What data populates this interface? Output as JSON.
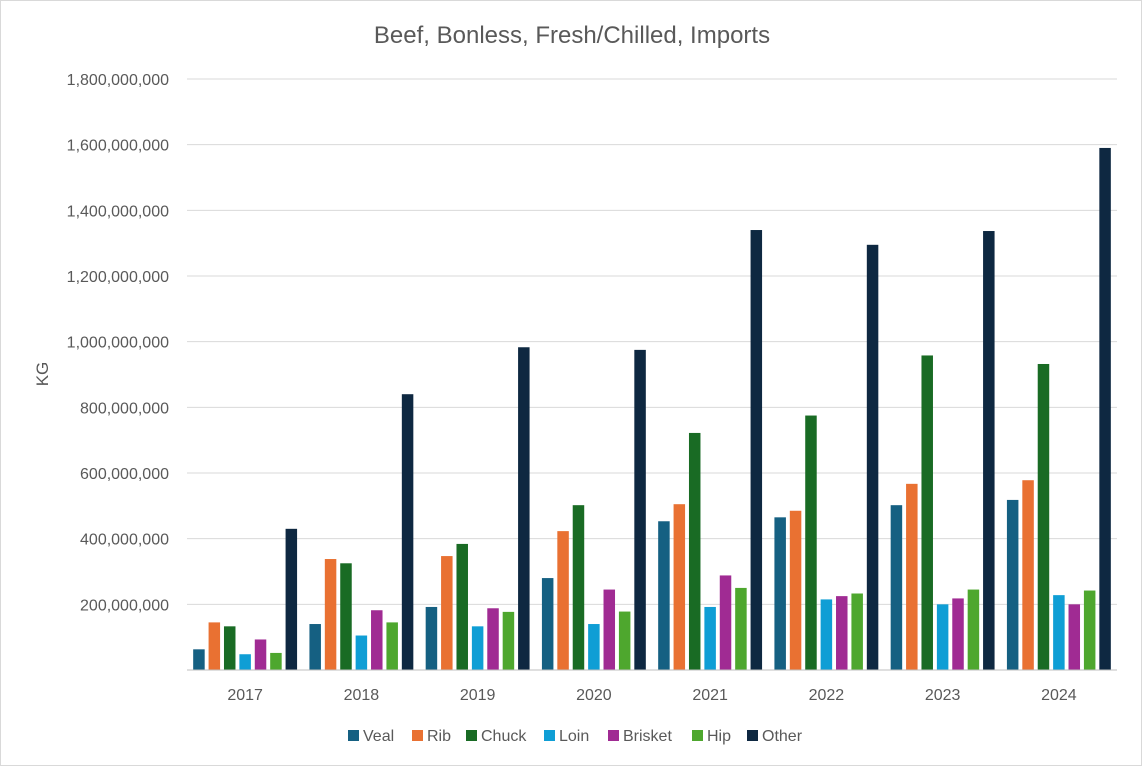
{
  "chart_data": {
    "type": "bar",
    "title": "Beef, Bonless, Fresh/Chilled, Imports",
    "xlabel": "",
    "ylabel": "KG",
    "ylim": [
      0,
      1800000000
    ],
    "yticks": [
      {
        "value": 200000000,
        "label": "200,000,000"
      },
      {
        "value": 400000000,
        "label": "400,000,000"
      },
      {
        "value": 600000000,
        "label": "600,000,000"
      },
      {
        "value": 800000000,
        "label": "800,000,000"
      },
      {
        "value": 1000000000,
        "label": "1,000,000,000"
      },
      {
        "value": 1200000000,
        "label": "1,200,000,000"
      },
      {
        "value": 1400000000,
        "label": "1,400,000,000"
      },
      {
        "value": 1600000000,
        "label": "1,600,000,000"
      },
      {
        "value": 1800000000,
        "label": "1,800,000,000"
      }
    ],
    "grid": true,
    "legend_position": "bottom",
    "categories": [
      "2017",
      "2018",
      "2019",
      "2020",
      "2021",
      "2022",
      "2023",
      "2024"
    ],
    "series": [
      {
        "name": "Veal",
        "color": "#156082",
        "values": [
          63000000,
          140000000,
          192000000,
          280000000,
          453000000,
          465000000,
          502000000,
          518000000
        ]
      },
      {
        "name": "Rib",
        "color": "#e97132",
        "values": [
          145000000,
          338000000,
          347000000,
          423000000,
          505000000,
          485000000,
          567000000,
          578000000
        ]
      },
      {
        "name": "Chuck",
        "color": "#196b24",
        "values": [
          133000000,
          325000000,
          384000000,
          502000000,
          722000000,
          775000000,
          958000000,
          932000000
        ]
      },
      {
        "name": "Loin",
        "color": "#0f9ed5",
        "values": [
          48000000,
          105000000,
          133000000,
          140000000,
          192000000,
          215000000,
          200000000,
          228000000
        ]
      },
      {
        "name": "Brisket",
        "color": "#a02b93",
        "values": [
          93000000,
          182000000,
          188000000,
          245000000,
          288000000,
          225000000,
          218000000,
          200000000
        ]
      },
      {
        "name": "Hip",
        "color": "#4ea72e",
        "values": [
          52000000,
          145000000,
          177000000,
          178000000,
          250000000,
          233000000,
          245000000,
          242000000
        ]
      },
      {
        "name": "Other",
        "color": "#0e2841",
        "values": [
          430000000,
          840000000,
          983000000,
          975000000,
          1340000000,
          1295000000,
          1337000000,
          1590000000
        ]
      }
    ]
  }
}
